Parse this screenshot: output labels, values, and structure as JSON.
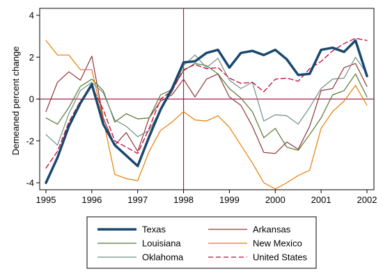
{
  "chart_data": {
    "type": "line",
    "ylabel": "Demeaned percent change",
    "xlim": [
      1995,
      2002
    ],
    "ylim": [
      -4.3,
      4.3
    ],
    "x_ticks": [
      1995,
      1996,
      1997,
      1998,
      1999,
      2000,
      2001,
      2002
    ],
    "x_tick_labels": [
      "1995",
      "1996",
      "1997",
      "1998",
      "1999",
      "2000",
      "2001",
      "2002"
    ],
    "y_ticks": [
      -4,
      -2,
      0,
      2,
      4
    ],
    "y_tick_labels": [
      "-4",
      "-2",
      "0",
      "2",
      "4"
    ],
    "reference_lines": {
      "horizontal": 0,
      "vertical": 1998,
      "color": "#a0204c"
    },
    "x": [
      1995.0,
      1995.25,
      1995.5,
      1995.75,
      1996.0,
      1996.25,
      1996.5,
      1996.75,
      1997.0,
      1997.25,
      1997.5,
      1997.75,
      1998.0,
      1998.25,
      1998.5,
      1998.75,
      1999.0,
      1999.25,
      1999.5,
      1999.75,
      2000.0,
      2000.25,
      2000.5,
      2000.75,
      2001.0,
      2001.25,
      2001.5,
      2001.75,
      2002.0
    ],
    "series": [
      {
        "name": "Texas",
        "color": "#1a476f",
        "width": 3.5,
        "dash": "",
        "values": [
          -4.0,
          -2.8,
          -1.3,
          -0.2,
          0.7,
          -1.2,
          -2.2,
          -2.7,
          -3.2,
          -1.8,
          -0.5,
          0.5,
          1.75,
          1.8,
          2.2,
          2.35,
          1.5,
          2.2,
          2.3,
          2.1,
          2.35,
          1.9,
          1.15,
          1.2,
          2.35,
          2.45,
          2.25,
          2.8,
          1.1
        ]
      },
      {
        "name": "Arkansas",
        "color": "#90353b",
        "width": 1.2,
        "dash": "",
        "values": [
          -0.6,
          0.8,
          1.3,
          0.9,
          2.05,
          -0.9,
          -2.2,
          -1.6,
          -2.5,
          -0.9,
          -0.1,
          0.2,
          0.95,
          0.1,
          0.95,
          1.2,
          0.1,
          -0.3,
          -1.3,
          -2.55,
          -2.6,
          -2.05,
          -2.4,
          -1.3,
          0.4,
          0.5,
          1.5,
          1.7,
          0.6
        ]
      },
      {
        "name": "Louisiana",
        "color": "#55752f",
        "width": 1.2,
        "dash": "",
        "values": [
          -0.9,
          -1.2,
          -0.4,
          0.6,
          0.95,
          0.4,
          -1.1,
          -0.7,
          -0.95,
          -0.9,
          0.2,
          0.45,
          1.35,
          1.7,
          1.6,
          1.2,
          0.5,
          0.05,
          -0.6,
          -1.85,
          -1.4,
          -2.3,
          -2.45,
          -1.7,
          -0.9,
          0.2,
          0.4,
          1.2,
          0.1
        ]
      },
      {
        "name": "New Mexico",
        "color": "#e37e00",
        "width": 1.2,
        "dash": "",
        "values": [
          2.8,
          2.1,
          2.1,
          1.4,
          1.4,
          -1.0,
          -3.6,
          -3.8,
          -3.9,
          -2.5,
          -1.5,
          -1.1,
          -0.6,
          -1.0,
          -1.05,
          -0.8,
          -1.35,
          -2.2,
          -3.05,
          -4.0,
          -4.3,
          -4.0,
          -3.65,
          -3.4,
          -1.4,
          -0.6,
          -0.1,
          0.65,
          -0.3
        ]
      },
      {
        "name": "Oklahoma",
        "color": "#6e8e84",
        "width": 1.2,
        "dash": "",
        "values": [
          -1.7,
          -2.2,
          -0.7,
          0.4,
          0.8,
          0.3,
          -1.0,
          -1.3,
          -1.8,
          -1.5,
          -0.5,
          0.35,
          1.6,
          2.1,
          1.5,
          1.95,
          0.9,
          0.5,
          0.8,
          -1.05,
          -0.75,
          -0.8,
          -1.2,
          -0.4,
          0.5,
          0.95,
          1.0,
          2.0,
          1.2
        ]
      },
      {
        "name": "United States",
        "color": "#c10534",
        "width": 1.3,
        "dash": "7,4",
        "values": [
          -3.3,
          -2.5,
          -1.1,
          -0.1,
          0.6,
          -0.5,
          -2.0,
          -2.3,
          -2.6,
          -1.4,
          0.0,
          0.4,
          1.4,
          1.65,
          1.45,
          1.5,
          1.0,
          0.75,
          0.8,
          0.35,
          0.95,
          1.0,
          0.85,
          1.45,
          1.8,
          2.3,
          2.65,
          2.9,
          2.8
        ]
      }
    ],
    "legend": {
      "placement": "bottom",
      "columns": 2,
      "order": [
        "Texas",
        "Arkansas",
        "Louisiana",
        "New Mexico",
        "Oklahoma",
        "United States"
      ]
    },
    "grid": false
  }
}
